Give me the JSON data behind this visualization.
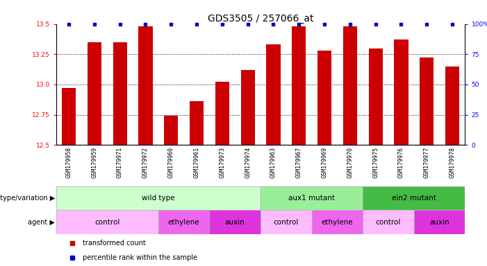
{
  "title": "GDS3505 / 257066_at",
  "samples": [
    "GSM179958",
    "GSM179959",
    "GSM179971",
    "GSM179972",
    "GSM179960",
    "GSM179961",
    "GSM179973",
    "GSM179974",
    "GSM179963",
    "GSM179967",
    "GSM179969",
    "GSM179970",
    "GSM179975",
    "GSM179976",
    "GSM179977",
    "GSM179978"
  ],
  "transformed_counts": [
    12.97,
    13.35,
    13.35,
    13.48,
    12.74,
    12.86,
    13.02,
    13.12,
    13.33,
    13.48,
    13.28,
    13.48,
    13.3,
    13.37,
    13.22,
    13.15
  ],
  "ylim_left": [
    12.5,
    13.5
  ],
  "ylim_right": [
    0,
    100
  ],
  "yticks_left": [
    12.5,
    12.75,
    13.0,
    13.25,
    13.5
  ],
  "yticks_right": [
    0,
    25,
    50,
    75,
    100
  ],
  "bar_color": "#cc0000",
  "dot_color": "#0000cc",
  "genotype_groups": [
    {
      "label": "wild type",
      "start": 0,
      "end": 7,
      "color": "#ccffcc"
    },
    {
      "label": "aux1 mutant",
      "start": 8,
      "end": 11,
      "color": "#99ee99"
    },
    {
      "label": "ein2 mutant",
      "start": 12,
      "end": 15,
      "color": "#44bb44"
    }
  ],
  "agent_groups": [
    {
      "label": "control",
      "start": 0,
      "end": 3,
      "color": "#ffbbff"
    },
    {
      "label": "ethylene",
      "start": 4,
      "end": 5,
      "color": "#ee66ee"
    },
    {
      "label": "auxin",
      "start": 6,
      "end": 7,
      "color": "#dd33dd"
    },
    {
      "label": "control",
      "start": 8,
      "end": 9,
      "color": "#ffbbff"
    },
    {
      "label": "ethylene",
      "start": 10,
      "end": 11,
      "color": "#ee66ee"
    },
    {
      "label": "control",
      "start": 12,
      "end": 13,
      "color": "#ffbbff"
    },
    {
      "label": "auxin",
      "start": 14,
      "end": 15,
      "color": "#dd33dd"
    }
  ],
  "legend_items": [
    {
      "label": "transformed count",
      "color": "#cc0000"
    },
    {
      "label": "percentile rank within the sample",
      "color": "#0000cc"
    }
  ],
  "bar_width": 0.55,
  "background_color": "#ffffff",
  "title_fontsize": 10,
  "tick_fontsize": 6.5,
  "label_fontsize": 7.5,
  "sample_fontsize": 6,
  "row_label_fontsize": 7
}
